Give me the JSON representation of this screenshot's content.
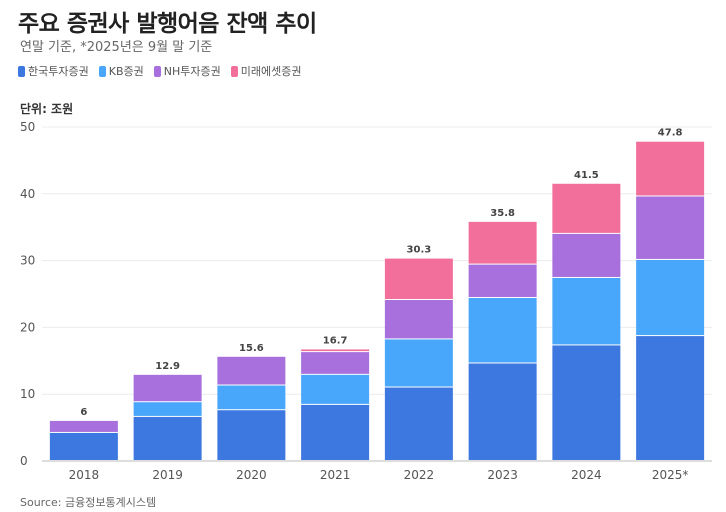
{
  "title": "주요 증권사 발행어음 잔액 추이",
  "subtitle": "연말 기준, *2025년은 9월 말 기준",
  "unit_label": "단위: 조원",
  "source": "Source: 금융정보통계시스템",
  "chart_data": {
    "type": "bar",
    "stacked": true,
    "categories": [
      "2018",
      "2019",
      "2020",
      "2021",
      "2022",
      "2023",
      "2024",
      "2025*"
    ],
    "series": [
      {
        "name": "한국투자증권",
        "color": "#3d78e0",
        "values": [
          4.2,
          6.6,
          7.6,
          8.4,
          11.0,
          14.6,
          17.3,
          18.7
        ]
      },
      {
        "name": "KB증권",
        "color": "#48a6fb",
        "values": [
          0,
          2.2,
          3.7,
          4.5,
          7.2,
          9.8,
          10.1,
          11.4
        ]
      },
      {
        "name": "NH투자증권",
        "color": "#a770dc",
        "values": [
          1.8,
          4.1,
          4.3,
          3.4,
          5.9,
          5.0,
          6.6,
          9.5
        ]
      },
      {
        "name": "미래에셋증권",
        "color": "#f26f9c",
        "values": [
          0,
          0,
          0,
          0.4,
          6.2,
          6.4,
          7.5,
          8.2
        ]
      }
    ],
    "totals": [
      "6",
      "12.9",
      "15.6",
      "16.7",
      "30.3",
      "35.8",
      "41.5",
      "47.8"
    ],
    "ylim": [
      0,
      50
    ],
    "yticks": [
      "0",
      "10",
      "20",
      "30",
      "40",
      "50"
    ],
    "grid": true,
    "legend": "top-left"
  }
}
